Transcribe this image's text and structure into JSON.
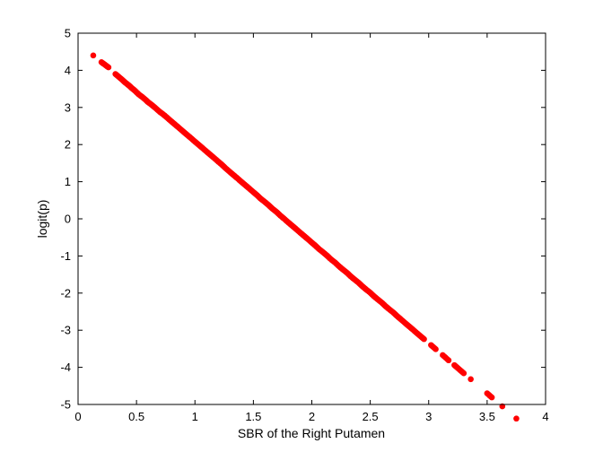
{
  "chart_data": {
    "type": "scatter",
    "title": "",
    "xlabel": "SBR of the Right Putamen",
    "ylabel": "logit(p)",
    "xlim": [
      0,
      4
    ],
    "ylim": [
      -5,
      5
    ],
    "xticks": [
      0,
      0.5,
      1,
      1.5,
      2,
      2.5,
      3,
      3.5,
      4
    ],
    "xtick_labels": [
      "0",
      "0.5",
      "1",
      "1.5",
      "2",
      "2.5",
      "3",
      "3.5",
      "4"
    ],
    "yticks": [
      -5,
      -4,
      -3,
      -2,
      -1,
      0,
      1,
      2,
      3,
      4,
      5
    ],
    "yticks_labels": [
      "-5",
      "-4",
      "-3",
      "-2",
      "-1",
      "0",
      "1",
      "2",
      "3",
      "4",
      "5"
    ],
    "grid": false,
    "legend": "none",
    "marker_color": "#ff0000",
    "series": [
      {
        "x": [
          0.13,
          0.2,
          0.23,
          0.26,
          0.32,
          0.35,
          0.38,
          0.4,
          0.42,
          0.44,
          0.46,
          0.48,
          0.5,
          0.52,
          0.55,
          0.58,
          0.6,
          0.63,
          0.66,
          0.7,
          0.73,
          0.76,
          0.8,
          0.83,
          0.86,
          0.9,
          0.93,
          0.96,
          1.0,
          1.03,
          1.06,
          1.1,
          1.13,
          1.16,
          1.2,
          1.23,
          1.26,
          1.3,
          1.33,
          1.36,
          1.4,
          1.43,
          1.46,
          1.5,
          1.53,
          1.56,
          1.6,
          1.63,
          1.66,
          1.7,
          1.73,
          1.76,
          1.8,
          1.83,
          1.86,
          1.9,
          1.93,
          1.96,
          2.0,
          2.03,
          2.06,
          2.1,
          2.13,
          2.16,
          2.2,
          2.23,
          2.26,
          2.3,
          2.33,
          2.36,
          2.4,
          2.43,
          2.46,
          2.5,
          2.53,
          2.56,
          2.6,
          2.63,
          2.66,
          2.7,
          2.73,
          2.76,
          2.8,
          2.83,
          2.86,
          2.9,
          2.93,
          2.96,
          3.02,
          3.06,
          3.12,
          3.17,
          3.22,
          3.26,
          3.3,
          3.36,
          3.5,
          3.54,
          3.63,
          3.75
        ],
        "y": [
          4.4,
          4.22,
          4.15,
          4.08,
          3.9,
          3.82,
          3.74,
          3.68,
          3.63,
          3.58,
          3.52,
          3.47,
          3.41,
          3.35,
          3.28,
          3.2,
          3.14,
          3.07,
          2.99,
          2.88,
          2.81,
          2.73,
          2.62,
          2.54,
          2.46,
          2.35,
          2.27,
          2.19,
          2.08,
          2.0,
          1.92,
          1.81,
          1.73,
          1.65,
          1.54,
          1.46,
          1.37,
          1.26,
          1.18,
          1.1,
          0.99,
          0.91,
          0.83,
          0.72,
          0.64,
          0.55,
          0.45,
          0.37,
          0.28,
          0.18,
          0.09,
          0.01,
          -0.1,
          -0.18,
          -0.26,
          -0.37,
          -0.45,
          -0.53,
          -0.64,
          -0.72,
          -0.81,
          -0.91,
          -0.99,
          -1.08,
          -1.18,
          -1.27,
          -1.35,
          -1.45,
          -1.54,
          -1.62,
          -1.72,
          -1.81,
          -1.89,
          -1.99,
          -2.08,
          -2.16,
          -2.26,
          -2.35,
          -2.43,
          -2.53,
          -2.62,
          -2.7,
          -2.81,
          -2.89,
          -2.97,
          -3.08,
          -3.16,
          -3.24,
          -3.4,
          -3.51,
          -3.67,
          -3.81,
          -3.94,
          -4.05,
          -4.16,
          -4.32,
          -4.7,
          -4.81,
          -5.05,
          -5.38
        ]
      }
    ]
  }
}
